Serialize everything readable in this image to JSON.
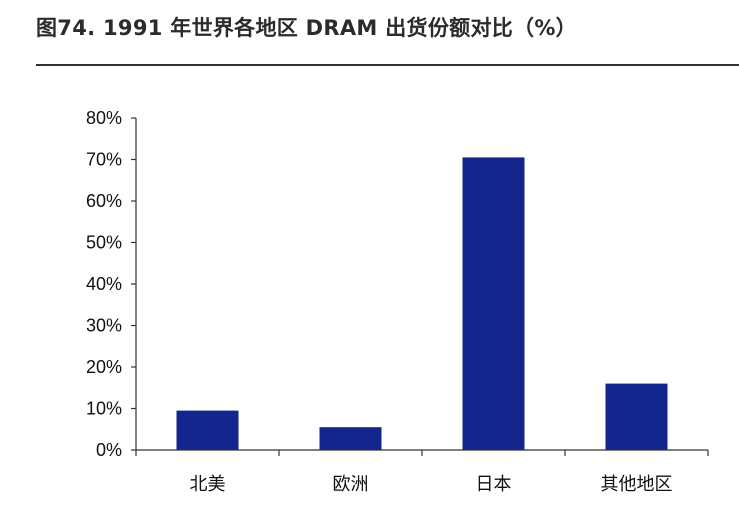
{
  "figure": {
    "title": "图74. 1991 年世界各地区 DRAM 出货份额对比（%）"
  },
  "colors": {
    "bar": "#12268E",
    "axis": "#333333"
  },
  "chart_data": {
    "type": "bar",
    "categories": [
      "北美",
      "欧洲",
      "日本",
      "其他地区"
    ],
    "values": [
      9.5,
      5.5,
      70.5,
      16.0
    ],
    "unit": "%",
    "ylim": [
      0,
      80
    ],
    "yticks": [
      0,
      10,
      20,
      30,
      40,
      50,
      60,
      70,
      80
    ],
    "ytick_labels": [
      "0%",
      "10%",
      "20%",
      "30%",
      "40%",
      "50%",
      "60%",
      "70%",
      "80%"
    ],
    "grid": false,
    "legend": "none"
  }
}
